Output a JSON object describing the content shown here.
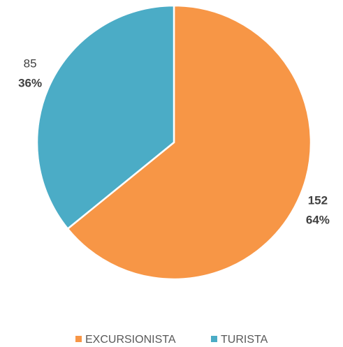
{
  "chart_data": {
    "type": "pie",
    "categories": [
      "EXCURSIONISTA",
      "TURISTA"
    ],
    "values": [
      152,
      85
    ],
    "percent_labels": [
      "64%",
      "36%"
    ],
    "colors": [
      "#f79646",
      "#4bacc6"
    ],
    "legend": "bottom"
  }
}
